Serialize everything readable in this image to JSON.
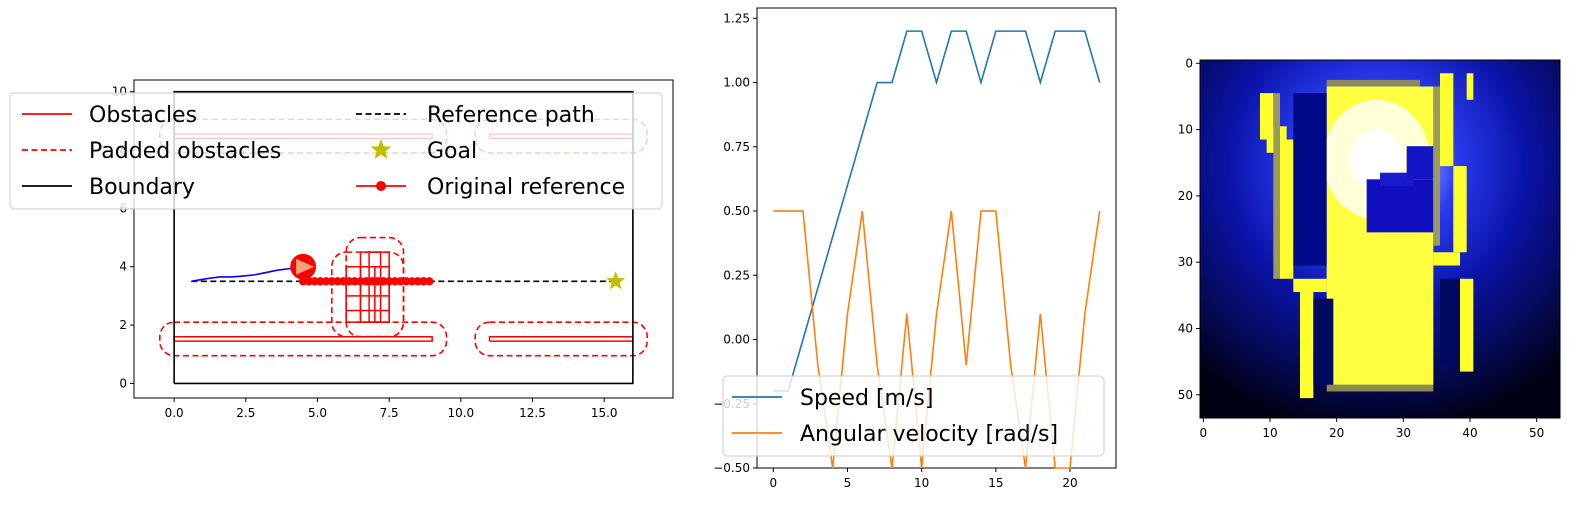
{
  "chart_data": [
    {
      "type": "line",
      "title": "",
      "xlabel": "",
      "ylabel": "",
      "xlim": [
        -1.4,
        17.4
      ],
      "ylim": [
        -0.5,
        10.4
      ],
      "xticks": [
        0.0,
        2.5,
        5.0,
        7.5,
        10.0,
        12.5,
        15.0
      ],
      "xtick_labels": [
        "0.0",
        "2.5",
        "5.0",
        "7.5",
        "10.0",
        "12.5",
        "15.0"
      ],
      "yticks": [
        0,
        2,
        4,
        6,
        8,
        10
      ],
      "ytick_labels": [
        "0",
        "2",
        "4",
        "6",
        "8",
        "10"
      ],
      "legend": {
        "placement": "upper-left, two columns",
        "entries": [
          {
            "label": "Obstacles",
            "color": "#ff0000",
            "style": "solid"
          },
          {
            "label": "Reference path",
            "color": "#000000",
            "style": "dashed"
          },
          {
            "label": "Padded obstacles",
            "color": "#ff0000",
            "style": "dashed"
          },
          {
            "label": "Goal",
            "color": "#bfbf00",
            "style": "star-marker"
          },
          {
            "label": "Boundary",
            "color": "#000000",
            "style": "solid"
          },
          {
            "label": "Original reference",
            "color": "#ff0000",
            "style": "solid-dot"
          }
        ]
      },
      "boundary": {
        "color": "#000000",
        "x": [
          0,
          16,
          16,
          0,
          0
        ],
        "y": [
          0,
          0,
          10,
          10,
          0
        ]
      },
      "obstacles": [
        {
          "x": [
            0,
            9,
            9,
            0,
            0
          ],
          "y": [
            1.45,
            1.45,
            1.6,
            1.6,
            1.45
          ]
        },
        {
          "x": [
            11,
            16,
            16,
            11,
            11
          ],
          "y": [
            1.45,
            1.45,
            1.6,
            1.6,
            1.45
          ]
        },
        {
          "x": [
            0,
            9,
            9,
            0,
            0
          ],
          "y": [
            8.4,
            8.4,
            8.55,
            8.55,
            8.4
          ]
        },
        {
          "x": [
            11,
            16,
            16,
            11,
            11
          ],
          "y": [
            8.4,
            8.4,
            8.55,
            8.55,
            8.4
          ]
        },
        {
          "x": [
            6.0,
            7.5,
            7.5,
            6.0,
            6.0
          ],
          "y": [
            2.1,
            2.1,
            4.0,
            4.0,
            2.1
          ]
        },
        {
          "x": [
            6.5,
            7.5,
            7.5,
            6.5,
            6.5
          ],
          "y": [
            2.1,
            2.1,
            4.5,
            4.5,
            2.1
          ]
        },
        {
          "x": [
            6.8,
            7.2,
            7.2,
            6.8,
            6.8
          ],
          "y": [
            2.1,
            2.1,
            4.5,
            4.5,
            2.1
          ]
        }
      ],
      "padded_obstacles": [
        {
          "xmin": 0,
          "xmax": 9,
          "ymin": 1.45,
          "ymax": 1.6,
          "pad": 0.5
        },
        {
          "xmin": 11,
          "xmax": 16,
          "ymin": 1.45,
          "ymax": 1.6,
          "pad": 0.5
        },
        {
          "xmin": 0,
          "xmax": 9,
          "ymin": 8.4,
          "ymax": 8.55,
          "pad": 0.5
        },
        {
          "xmin": 11,
          "xmax": 16,
          "ymin": 8.4,
          "ymax": 8.55,
          "pad": 0.5
        },
        {
          "xmin": 6.0,
          "xmax": 7.5,
          "ymin": 2.1,
          "ymax": 4.0,
          "pad": 0.5
        },
        {
          "xmin": 6.5,
          "xmax": 7.5,
          "ymin": 2.1,
          "ymax": 4.5,
          "pad": 0.5
        }
      ],
      "reference_path": {
        "color": "#000000",
        "x": [
          0.6,
          15.4
        ],
        "y": [
          3.5,
          3.5
        ]
      },
      "goal": {
        "x": 15.4,
        "y": 3.5,
        "color": "#bfbf00"
      },
      "original_reference": {
        "color": "#ff0000",
        "x": [
          4.5,
          4.7,
          4.9,
          5.1,
          5.3,
          5.5,
          5.7,
          5.9,
          6.1,
          6.3,
          6.5,
          6.7,
          6.9,
          7.1,
          7.3,
          7.5,
          7.7,
          7.9,
          8.1,
          8.3,
          8.5,
          8.7,
          8.9
        ],
        "y": [
          3.5,
          3.5,
          3.5,
          3.5,
          3.5,
          3.5,
          3.5,
          3.5,
          3.5,
          3.5,
          3.5,
          3.5,
          3.5,
          3.5,
          3.5,
          3.5,
          3.5,
          3.5,
          3.5,
          3.5,
          3.5,
          3.5,
          3.5
        ]
      },
      "trajectory": {
        "color": "#0000ff",
        "x": [
          0.6,
          0.9,
          1.2,
          1.6,
          2.0,
          2.4,
          2.8,
          3.2,
          3.6,
          4.0,
          4.3
        ],
        "y": [
          3.5,
          3.55,
          3.6,
          3.65,
          3.65,
          3.68,
          3.72,
          3.8,
          3.88,
          3.93,
          3.95
        ]
      },
      "robot": {
        "x": 4.5,
        "y": 4.0,
        "radius": 0.45,
        "heading_deg": 0,
        "color": "#ff0000",
        "arrow_color": "#ffa07a"
      }
    },
    {
      "type": "line",
      "title": "",
      "xlabel": "",
      "ylabel": "",
      "xlim": [
        -1.1,
        23.1
      ],
      "ylim": [
        -0.5,
        1.29
      ],
      "xticks": [
        0,
        5,
        10,
        15,
        20
      ],
      "xtick_labels": [
        "0",
        "5",
        "10",
        "15",
        "20"
      ],
      "yticks": [
        -0.5,
        -0.25,
        0.0,
        0.25,
        0.5,
        0.75,
        1.0,
        1.25
      ],
      "ytick_labels": [
        "−0.50",
        "−0.25",
        "0.00",
        "0.25",
        "0.50",
        "0.75",
        "1.00",
        "1.25"
      ],
      "legend": {
        "placement": "lower-left"
      },
      "x": [
        0,
        1,
        2,
        3,
        4,
        5,
        6,
        7,
        8,
        9,
        10,
        11,
        12,
        13,
        14,
        15,
        16,
        17,
        18,
        19,
        20,
        21,
        22
      ],
      "series": [
        {
          "name": "Speed [m/s]",
          "color": "#1f77b4",
          "values": [
            -0.2,
            -0.2,
            0.0,
            0.2,
            0.4,
            0.6,
            0.8,
            1.0,
            1.0,
            1.2,
            1.2,
            1.0,
            1.2,
            1.2,
            1.0,
            1.2,
            1.2,
            1.2,
            1.0,
            1.2,
            1.2,
            1.2,
            1.0
          ]
        },
        {
          "name": "Angular velocity [rad/s]",
          "color": "#ff7f0e",
          "values": [
            0.5,
            0.5,
            0.5,
            -0.1,
            -0.5,
            0.1,
            0.5,
            -0.1,
            -0.5,
            0.1,
            -0.5,
            0.1,
            0.5,
            -0.1,
            0.5,
            0.5,
            -0.1,
            -0.5,
            0.1,
            -0.5,
            -0.5,
            0.1,
            0.5
          ]
        }
      ]
    },
    {
      "type": "heatmap",
      "title": "",
      "xlabel": "",
      "ylabel": "",
      "xticks": [
        0,
        10,
        20,
        30,
        40,
        50
      ],
      "xtick_labels": [
        "0",
        "10",
        "20",
        "30",
        "40",
        "50"
      ],
      "yticks": [
        0,
        10,
        20,
        30,
        40,
        50
      ],
      "ytick_labels": [
        "0",
        "10",
        "20",
        "30",
        "40",
        "50"
      ],
      "grid_size": [
        54,
        54
      ],
      "colormap": "black-blue-white-yellow (gnuplot2-like)",
      "description_of_field": "cost field centered near column 26, row 15; bright yellow free region roughly columns 19-35, rows 4-49; dark blue interior pocket rows 17-27 columns 25-37; yellow corridors along left and right boundaries"
    }
  ]
}
